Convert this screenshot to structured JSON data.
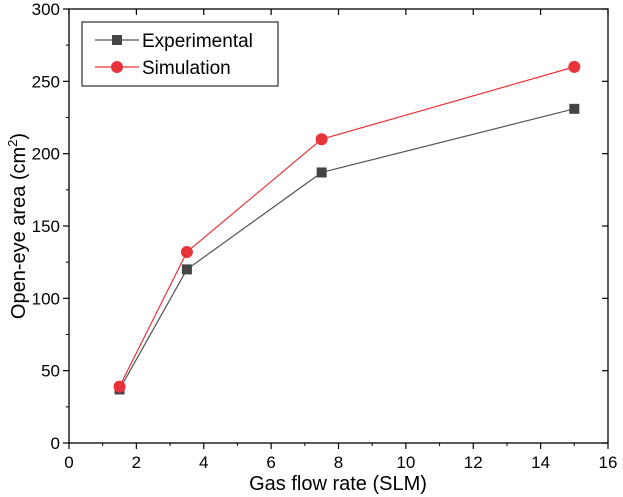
{
  "chart_data": {
    "type": "line",
    "xlabel": "Gas flow rate (SLM)",
    "ylabel_main": "Open-eye area (cm",
    "ylabel_sup": "2",
    "ylabel_end": ")",
    "xlim": [
      0,
      16
    ],
    "ylim": [
      0,
      300
    ],
    "xticks": [
      0,
      2,
      4,
      6,
      8,
      10,
      12,
      14,
      16
    ],
    "yticks": [
      0,
      50,
      100,
      150,
      200,
      250,
      300
    ],
    "grid": false,
    "legend_position": "top-left",
    "series": [
      {
        "name": "Experimental",
        "marker": "square",
        "line_color": "#555555",
        "marker_color": "#444444",
        "x": [
          1.5,
          3.5,
          7.5,
          15
        ],
        "y": [
          37,
          120,
          187,
          231
        ]
      },
      {
        "name": "Simulation",
        "marker": "circle",
        "line_color": "#e8333a",
        "marker_color": "#e8333a",
        "x": [
          1.5,
          3.5,
          7.5,
          15
        ],
        "y": [
          39,
          132,
          210,
          260
        ]
      }
    ]
  }
}
